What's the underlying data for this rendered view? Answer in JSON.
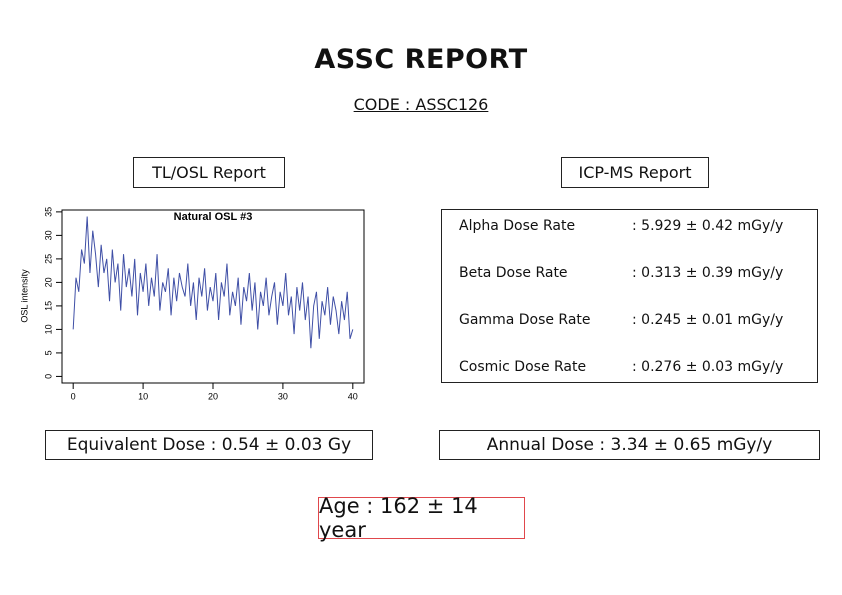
{
  "header": {
    "title": "ASSC REPORT",
    "code": "CODE : ASSC126"
  },
  "tl_osl": {
    "label": "TL/OSL Report",
    "equivalent_dose": "Equivalent Dose : 0.54 ± 0.03 Gy"
  },
  "chart_data": {
    "type": "line",
    "title": "Natural OSL #3",
    "y_label": "OSL intensity",
    "x": [
      0,
      0.4,
      0.8,
      1.2,
      1.6,
      2,
      2.4,
      2.8,
      3.2,
      3.6,
      4,
      4.4,
      4.8,
      5.2,
      5.6,
      6,
      6.4,
      6.8,
      7.2,
      7.6,
      8,
      8.4,
      8.8,
      9.2,
      9.6,
      10,
      10.4,
      10.8,
      11.2,
      11.6,
      12,
      12.4,
      12.8,
      13.2,
      13.6,
      14,
      14.4,
      14.8,
      15.2,
      15.6,
      16,
      16.4,
      16.8,
      17.2,
      17.6,
      18,
      18.4,
      18.8,
      19.2,
      19.6,
      20,
      20.4,
      20.8,
      21.2,
      21.6,
      22,
      22.4,
      22.8,
      23.2,
      23.6,
      24,
      24.4,
      24.8,
      25.2,
      25.6,
      26,
      26.4,
      26.8,
      27.2,
      27.6,
      28,
      28.4,
      28.8,
      29.2,
      29.6,
      30,
      30.4,
      30.8,
      31.2,
      31.6,
      32,
      32.4,
      32.8,
      33.2,
      33.6,
      34,
      34.4,
      34.8,
      35.2,
      35.6,
      36,
      36.4,
      36.8,
      37.2,
      37.6,
      38,
      38.4,
      38.8,
      39.2,
      39.6,
      40
    ],
    "series": [
      {
        "color": "#3f4fa6",
        "values": [
          10,
          21,
          18,
          27,
          24,
          34,
          22,
          31,
          26,
          19,
          28,
          22,
          25,
          16,
          27,
          20,
          24,
          14,
          26,
          19,
          23,
          17,
          25,
          13,
          22,
          18,
          24,
          15,
          21,
          17,
          26,
          14,
          20,
          18,
          23,
          13,
          21,
          16,
          22,
          19,
          17,
          24,
          15,
          20,
          12,
          21,
          17,
          23,
          14,
          19,
          16,
          22,
          12,
          20,
          17,
          24,
          13,
          18,
          15,
          21,
          11,
          19,
          16,
          22,
          14,
          20,
          10,
          18,
          15,
          21,
          13,
          17,
          20,
          11,
          18,
          15,
          22,
          13,
          17,
          9,
          19,
          14,
          20,
          12,
          17,
          6,
          15,
          18,
          8,
          16,
          13,
          19,
          11,
          17,
          14,
          9,
          16,
          12,
          18,
          8,
          10
        ]
      }
    ],
    "xlim": [
      -1.6,
      41.6
    ],
    "ylim": [
      -1.4,
      35.4
    ],
    "xticks": [
      0,
      10,
      20,
      30,
      40
    ],
    "yticks": [
      0,
      5,
      10,
      15,
      20,
      25,
      30,
      35
    ]
  },
  "icp_ms": {
    "label": "ICP-MS Report",
    "rows": [
      [
        "Alpha Dose Rate",
        ": 5.929 ± 0.42 mGy/y"
      ],
      [
        "Beta Dose Rate",
        ": 0.313 ± 0.39 mGy/y"
      ],
      [
        "Gamma Dose Rate",
        ": 0.245 ± 0.01 mGy/y"
      ],
      [
        "Cosmic Dose Rate",
        ": 0.276 ± 0.03 mGy/y"
      ]
    ],
    "annual_dose": "Annual Dose : 3.34 ± 0.65 mGy/y"
  },
  "age": "Age : 162 ± 14 year"
}
